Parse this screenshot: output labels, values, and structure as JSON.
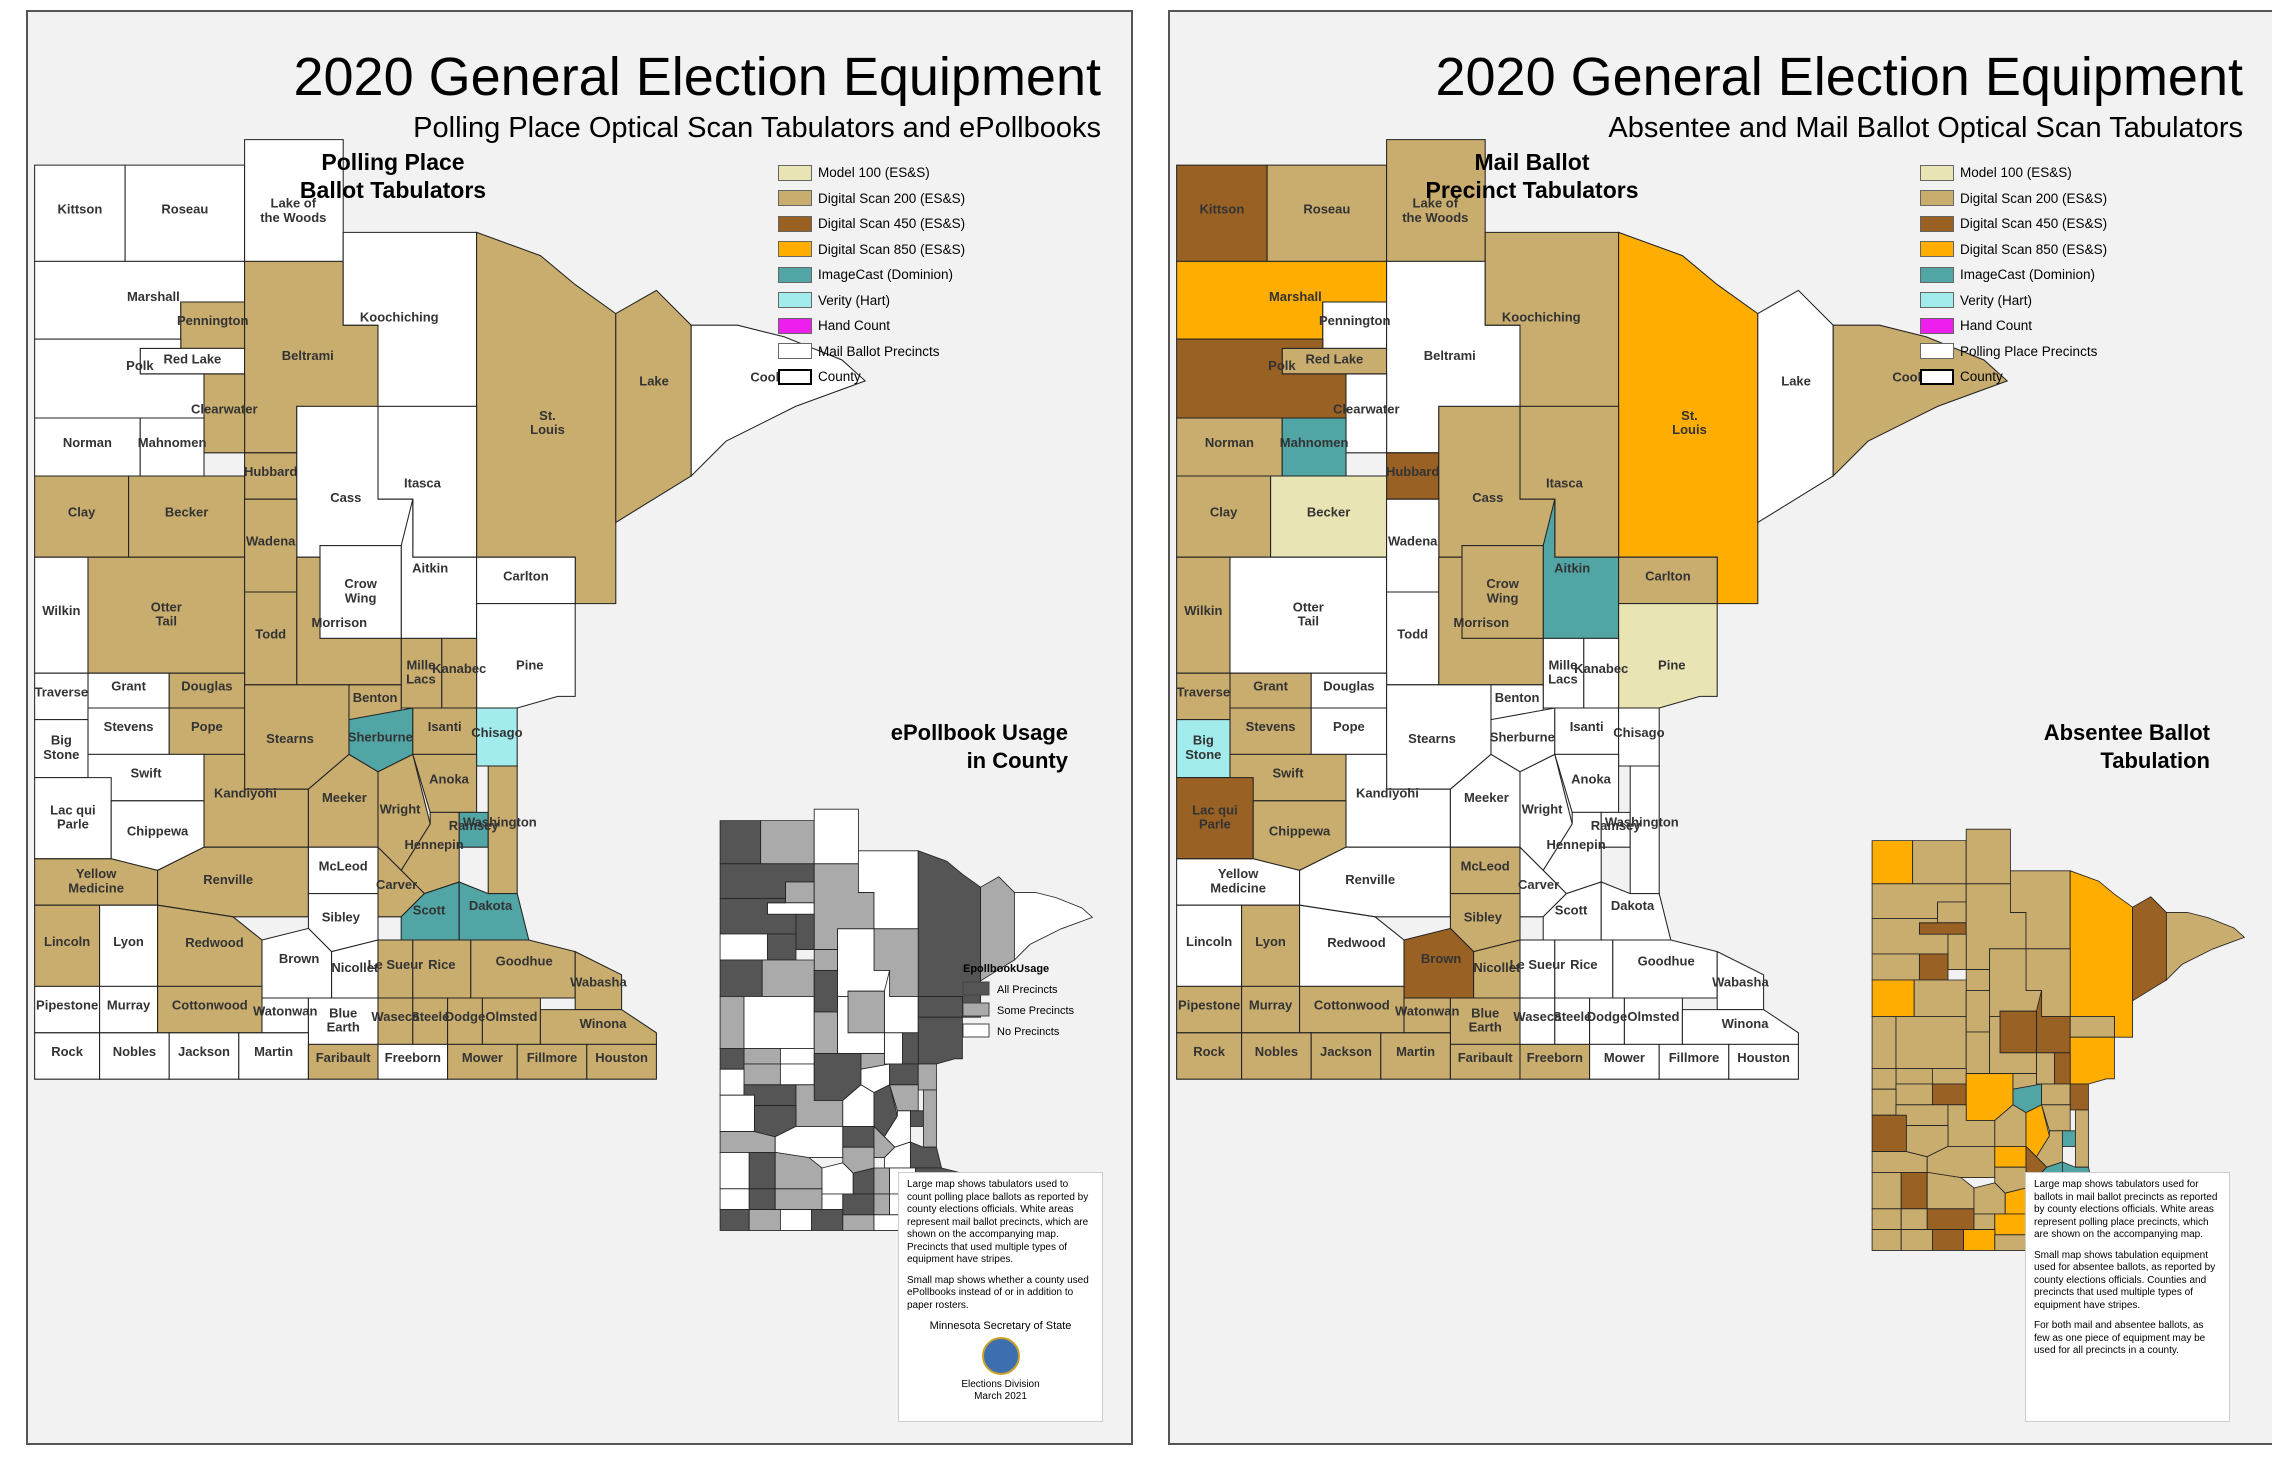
{
  "left": {
    "title": "2020 General Election Equipment",
    "subtitle": "Polling Place Optical Scan Tabulators and ePollbooks",
    "heading": [
      "Polling Place",
      "Ballot Tabulators"
    ],
    "inset_heading": [
      "ePollbook Usage",
      "in County"
    ],
    "legend": [
      {
        "label": "Model 100 (ES&S)",
        "color": "#e8e4b4"
      },
      {
        "label": "Digital Scan 200 (ES&S)",
        "color": "#c9ad6e"
      },
      {
        "label": "Digital Scan 450 (ES&S)",
        "color": "#9a6124"
      },
      {
        "label": "Digital Scan 850 (ES&S)",
        "color": "#ffad00"
      },
      {
        "label": "ImageCast (Dominion)",
        "color": "#52a5a5"
      },
      {
        "label": "Verity (Hart)",
        "color": "#a2ecee"
      },
      {
        "label": "Hand Count",
        "color": "#ee1fee"
      },
      {
        "label": "Mail Ballot Precincts",
        "color": "#ffffff"
      },
      {
        "label": "County",
        "color": "#ffffff"
      }
    ],
    "epollbook_legend": {
      "title": "EpollbookUsage",
      "items": [
        {
          "label": "All Precincts",
          "color": "#555555"
        },
        {
          "label": "Some Precincts",
          "color": "#aaaaaa"
        },
        {
          "label": "No Precincts",
          "color": "#ffffff"
        }
      ]
    },
    "note": [
      "Large map shows tabulators used to count polling place ballots as reported by county elections officials. White areas represent mail ballot precincts, which are shown on the accompanying map. Precincts that used multiple types of equipment have stripes.",
      "Small map shows whether a county used ePollbooks instead of or in addition to paper rosters."
    ],
    "credit": "Minnesota Secretary of State",
    "division": "Elections Division",
    "date": "March 2021"
  },
  "right": {
    "title": "2020 General Election Equipment",
    "subtitle": "Absentee and Mail Ballot Optical Scan Tabulators",
    "heading": [
      "Mail Ballot",
      "Precinct Tabulators"
    ],
    "inset_heading": [
      "Absentee Ballot",
      "Tabulation"
    ],
    "legend": [
      {
        "label": "Model 100 (ES&S)",
        "color": "#e8e4b4"
      },
      {
        "label": "Digital Scan 200 (ES&S)",
        "color": "#c9ad6e"
      },
      {
        "label": "Digital Scan 450 (ES&S)",
        "color": "#9a6124"
      },
      {
        "label": "Digital Scan 850 (ES&S)",
        "color": "#ffad00"
      },
      {
        "label": "ImageCast (Dominion)",
        "color": "#52a5a5"
      },
      {
        "label": "Verity (Hart)",
        "color": "#a2ecee"
      },
      {
        "label": "Hand Count",
        "color": "#ee1fee"
      },
      {
        "label": "Polling Place Precincts",
        "color": "#ffffff"
      },
      {
        "label": "County",
        "color": "#ffffff"
      }
    ],
    "note": [
      "Large map shows tabulators used for ballots in mail ballot precincts as reported by county elections officials. White areas represent polling place precincts, which are shown on the accompanying map.",
      "Small map shows tabulation equipment used for absentee ballots, as reported by county elections officials. Counties and precincts that used multiple types of equipment have stripes.",
      "For both mail and absentee ballots, as few as one piece of equipment may be used for all precincts in a county."
    ]
  },
  "counties": [
    {
      "name": "Kittson",
      "fill_left": "#ffffff",
      "fill_right": "#9a6124"
    },
    {
      "name": "Roseau",
      "fill_left": "#ffffff",
      "fill_right": "#c9ad6e"
    },
    {
      "name": "Lake of the Woods",
      "fill_left": "#ffffff",
      "fill_right": "#c9ad6e"
    },
    {
      "name": "Marshall",
      "fill_left": "#ffffff",
      "fill_right": "#ffad00"
    },
    {
      "name": "Pennington",
      "fill_left": "#c9ad6e",
      "fill_right": "#ffffff"
    },
    {
      "name": "Red Lake",
      "fill_left": "#ffffff",
      "fill_right": "#c9ad6e"
    },
    {
      "name": "Polk",
      "fill_left": "#ffffff",
      "fill_right": "#9a6124"
    },
    {
      "name": "Beltrami",
      "fill_left": "#c9ad6e",
      "fill_right": "#ffffff"
    },
    {
      "name": "Koochiching",
      "fill_left": "#ffffff",
      "fill_right": "#c9ad6e"
    },
    {
      "name": "St. Louis",
      "fill_left": "#c9ad6e",
      "fill_right": "#ffad00"
    },
    {
      "name": "Lake",
      "fill_left": "#c9ad6e",
      "fill_right": "#ffffff"
    },
    {
      "name": "Cook",
      "fill_left": "#ffffff",
      "fill_right": "#c9ad6e"
    },
    {
      "name": "Clearwater",
      "fill_left": "#c9ad6e",
      "fill_right": "#ffffff"
    },
    {
      "name": "Itasca",
      "fill_left": "#ffffff",
      "fill_right": "#c9ad6e"
    },
    {
      "name": "Norman",
      "fill_left": "#ffffff",
      "fill_right": "#c9ad6e"
    },
    {
      "name": "Mahnomen",
      "fill_left": "#ffffff",
      "fill_right": "#52a5a5"
    },
    {
      "name": "Hubbard",
      "fill_left": "#c9ad6e",
      "fill_right": "#9a6124"
    },
    {
      "name": "Cass",
      "fill_left": "#ffffff",
      "fill_right": "#c9ad6e"
    },
    {
      "name": "Clay",
      "fill_left": "#c9ad6e",
      "fill_right": "#c9ad6e"
    },
    {
      "name": "Becker",
      "fill_left": "#c9ad6e",
      "fill_right": "#e8e4b4"
    },
    {
      "name": "Aitkin",
      "fill_left": "#ffffff",
      "fill_right": "#52a5a5"
    },
    {
      "name": "Carlton",
      "fill_left": "#ffffff",
      "fill_right": "#c9ad6e"
    },
    {
      "name": "Wilkin",
      "fill_left": "#ffffff",
      "fill_right": "#c9ad6e"
    },
    {
      "name": "Otter Tail",
      "fill_left": "#c9ad6e",
      "fill_right": "#ffffff"
    },
    {
      "name": "Wadena",
      "fill_left": "#c9ad6e",
      "fill_right": "#ffffff"
    },
    {
      "name": "Crow Wing",
      "fill_left": "#ffffff",
      "fill_right": "#c9ad6e"
    },
    {
      "name": "Mille Lacs",
      "fill_left": "#c9ad6e",
      "fill_right": "#ffffff"
    },
    {
      "name": "Pine",
      "fill_left": "#ffffff",
      "fill_right": "#e8e4b4"
    },
    {
      "name": "Todd",
      "fill_left": "#c9ad6e",
      "fill_right": "#ffffff"
    },
    {
      "name": "Morrison",
      "fill_left": "#c9ad6e",
      "fill_right": "#c9ad6e"
    },
    {
      "name": "Kanabec",
      "fill_left": "#c9ad6e",
      "fill_right": "#ffffff"
    },
    {
      "name": "Grant",
      "fill_left": "#ffffff",
      "fill_right": "#c9ad6e"
    },
    {
      "name": "Douglas",
      "fill_left": "#c9ad6e",
      "fill_right": "#ffffff"
    },
    {
      "name": "Traverse",
      "fill_left": "#ffffff",
      "fill_right": "#c9ad6e"
    },
    {
      "name": "Stevens",
      "fill_left": "#ffffff",
      "fill_right": "#c9ad6e"
    },
    {
      "name": "Pope",
      "fill_left": "#c9ad6e",
      "fill_right": "#ffffff"
    },
    {
      "name": "Stearns",
      "fill_left": "#c9ad6e",
      "fill_right": "#ffffff"
    },
    {
      "name": "Benton",
      "fill_left": "#c9ad6e",
      "fill_right": "#ffffff"
    },
    {
      "name": "Sherburne",
      "fill_left": "#52a5a5",
      "fill_right": "#ffffff"
    },
    {
      "name": "Isanti",
      "fill_left": "#c9ad6e",
      "fill_right": "#ffffff"
    },
    {
      "name": "Chisago",
      "fill_left": "#a2ecee",
      "fill_right": "#ffffff"
    },
    {
      "name": "Big Stone",
      "fill_left": "#ffffff",
      "fill_right": "#a2ecee"
    },
    {
      "name": "Swift",
      "fill_left": "#ffffff",
      "fill_right": "#c9ad6e"
    },
    {
      "name": "Kandiyohi",
      "fill_left": "#c9ad6e",
      "fill_right": "#ffffff"
    },
    {
      "name": "Meeker",
      "fill_left": "#c9ad6e",
      "fill_right": "#ffffff"
    },
    {
      "name": "Wright",
      "fill_left": "#c9ad6e",
      "fill_right": "#ffffff"
    },
    {
      "name": "Anoka",
      "fill_left": "#c9ad6e",
      "fill_right": "#ffffff"
    },
    {
      "name": "Hennepin",
      "fill_left": "#c9ad6e",
      "fill_right": "#ffffff"
    },
    {
      "name": "Ramsey",
      "fill_left": "#52a5a5",
      "fill_right": "#ffffff"
    },
    {
      "name": "Washington",
      "fill_left": "#c9ad6e",
      "fill_right": "#ffffff"
    },
    {
      "name": "Lac qui Parle",
      "fill_left": "#ffffff",
      "fill_right": "#9a6124"
    },
    {
      "name": "Chippewa",
      "fill_left": "#ffffff",
      "fill_right": "#c9ad6e"
    },
    {
      "name": "Yellow Medicine",
      "fill_left": "#c9ad6e",
      "fill_right": "#ffffff"
    },
    {
      "name": "Renville",
      "fill_left": "#c9ad6e",
      "fill_right": "#ffffff"
    },
    {
      "name": "McLeod",
      "fill_left": "#ffffff",
      "fill_right": "#c9ad6e"
    },
    {
      "name": "Carver",
      "fill_left": "#c9ad6e",
      "fill_right": "#ffffff"
    },
    {
      "name": "Scott",
      "fill_left": "#52a5a5",
      "fill_right": "#ffffff"
    },
    {
      "name": "Dakota",
      "fill_left": "#52a5a5",
      "fill_right": "#ffffff"
    },
    {
      "name": "Sibley",
      "fill_left": "#ffffff",
      "fill_right": "#c9ad6e"
    },
    {
      "name": "Lincoln",
      "fill_left": "#c9ad6e",
      "fill_right": "#ffffff"
    },
    {
      "name": "Lyon",
      "fill_left": "#ffffff",
      "fill_right": "#c9ad6e"
    },
    {
      "name": "Redwood",
      "fill_left": "#c9ad6e",
      "fill_right": "#ffffff"
    },
    {
      "name": "Brown",
      "fill_left": "#ffffff",
      "fill_right": "#9a6124"
    },
    {
      "name": "Nicollet",
      "fill_left": "#ffffff",
      "fill_right": "#c9ad6e"
    },
    {
      "name": "Le Sueur",
      "fill_left": "#c9ad6e",
      "fill_right": "#ffffff"
    },
    {
      "name": "Rice",
      "fill_left": "#c9ad6e",
      "fill_right": "#ffffff"
    },
    {
      "name": "Goodhue",
      "fill_left": "#c9ad6e",
      "fill_right": "#ffffff"
    },
    {
      "name": "Wabasha",
      "fill_left": "#c9ad6e",
      "fill_right": "#ffffff"
    },
    {
      "name": "Pipestone",
      "fill_left": "#ffffff",
      "fill_right": "#c9ad6e"
    },
    {
      "name": "Murray",
      "fill_left": "#ffffff",
      "fill_right": "#c9ad6e"
    },
    {
      "name": "Cottonwood",
      "fill_left": "#c9ad6e",
      "fill_right": "#c9ad6e"
    },
    {
      "name": "Watonwan",
      "fill_left": "#ffffff",
      "fill_right": "#c9ad6e"
    },
    {
      "name": "Blue Earth",
      "fill_left": "#ffffff",
      "fill_right": "#c9ad6e"
    },
    {
      "name": "Waseca",
      "fill_left": "#c9ad6e",
      "fill_right": "#ffffff"
    },
    {
      "name": "Steele",
      "fill_left": "#c9ad6e",
      "fill_right": "#ffffff"
    },
    {
      "name": "Dodge",
      "fill_left": "#c9ad6e",
      "fill_right": "#ffffff"
    },
    {
      "name": "Olmsted",
      "fill_left": "#c9ad6e",
      "fill_right": "#ffffff"
    },
    {
      "name": "Winona",
      "fill_left": "#c9ad6e",
      "fill_right": "#ffffff"
    },
    {
      "name": "Rock",
      "fill_left": "#ffffff",
      "fill_right": "#c9ad6e"
    },
    {
      "name": "Nobles",
      "fill_left": "#ffffff",
      "fill_right": "#c9ad6e"
    },
    {
      "name": "Jackson",
      "fill_left": "#ffffff",
      "fill_right": "#c9ad6e"
    },
    {
      "name": "Martin",
      "fill_left": "#ffffff",
      "fill_right": "#c9ad6e"
    },
    {
      "name": "Faribault",
      "fill_left": "#c9ad6e",
      "fill_right": "#c9ad6e"
    },
    {
      "name": "Freeborn",
      "fill_left": "#ffffff",
      "fill_right": "#c9ad6e"
    },
    {
      "name": "Mower",
      "fill_left": "#c9ad6e",
      "fill_right": "#ffffff"
    },
    {
      "name": "Fillmore",
      "fill_left": "#c9ad6e",
      "fill_right": "#ffffff"
    },
    {
      "name": "Houston",
      "fill_left": "#c9ad6e",
      "fill_right": "#ffffff"
    }
  ]
}
